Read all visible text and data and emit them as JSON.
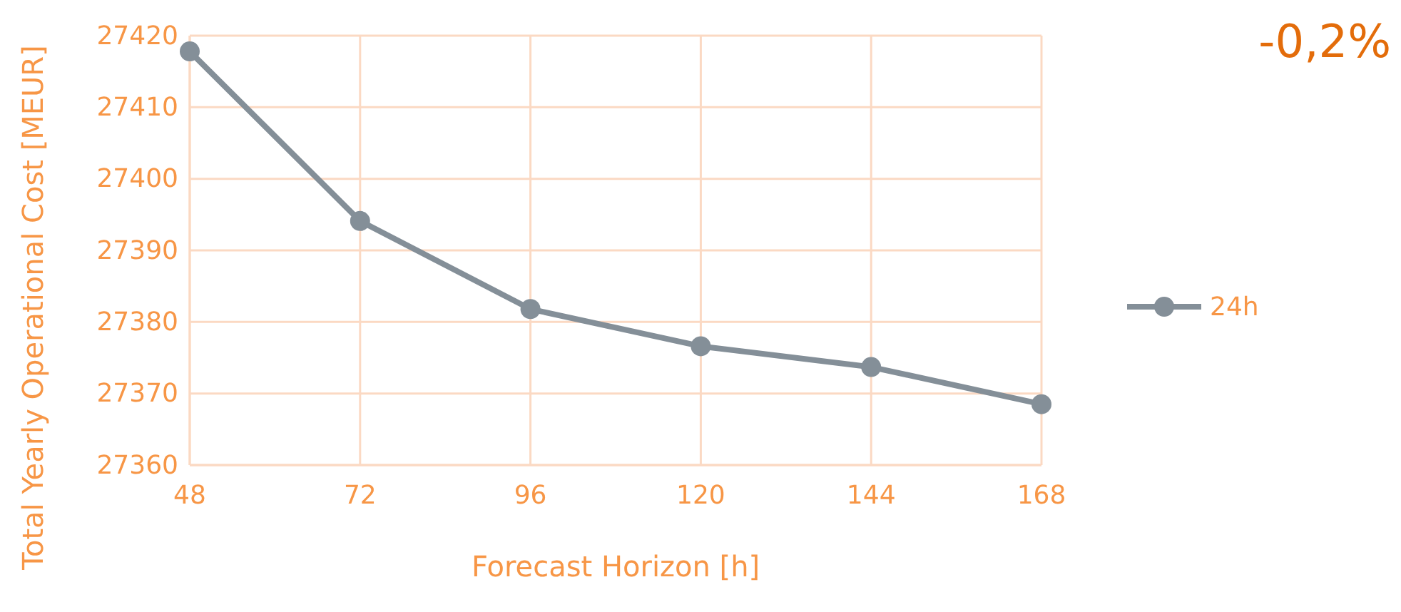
{
  "chart_data": {
    "type": "line",
    "xlabel": "Forecast Horizon [h]",
    "ylabel": "Total Yearly Operational Cost [MEUR]",
    "x": [
      48,
      72,
      96,
      120,
      144,
      168
    ],
    "series": [
      {
        "name": "24h",
        "color": "#848f98",
        "values": [
          27417.8,
          27394.1,
          27381.8,
          27376.6,
          27373.7,
          27368.5
        ]
      }
    ],
    "xlim": [
      48,
      168
    ],
    "xticks": [
      48,
      72,
      96,
      120,
      144,
      168
    ],
    "ylim": [
      27360,
      27420
    ],
    "yticks": [
      27360,
      27370,
      27380,
      27390,
      27400,
      27410,
      27420
    ],
    "grid": true,
    "legend": "right",
    "marker": "circle",
    "line_style": "solid",
    "annotations": [
      "-0,2%"
    ]
  }
}
